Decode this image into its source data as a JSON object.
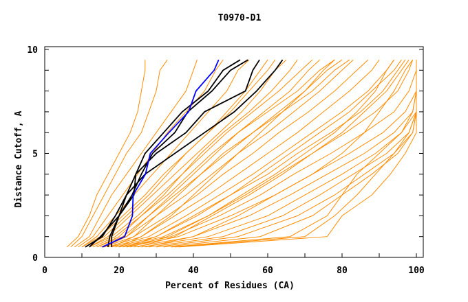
{
  "chart_data": {
    "type": "line",
    "title": "T0970-D1",
    "xlabel": "Percent of Residues (CA)",
    "ylabel": "Distance Cutoff, A",
    "xlim": [
      0,
      100
    ],
    "ylim": [
      0,
      10
    ],
    "xticks": [
      "0",
      "20",
      "40",
      "60",
      "80",
      "100"
    ],
    "yticks": [
      "0",
      "5",
      "10"
    ],
    "grid": false,
    "levels": [
      0.5,
      1,
      2,
      3,
      4,
      5,
      6,
      7,
      8,
      9,
      9.5
    ],
    "colors": {
      "others": "#ff8c00",
      "highlight": "#0000ff",
      "reference": "#000000"
    },
    "series_highlight": {
      "name": "blue",
      "x": [
        15.5,
        21.5,
        23.6,
        23.8,
        27.1,
        28.4,
        33.4,
        38.7,
        40.7,
        45.6,
        46.8
      ]
    },
    "series_reference": [
      {
        "x": [
          10.9,
          15.5,
          19,
          22,
          24.5,
          27,
          32,
          37,
          44,
          48,
          52.6
        ]
      },
      {
        "x": [
          17,
          17.5,
          20,
          23.5,
          26,
          29,
          35,
          38.5,
          45,
          50,
          54.7
        ]
      },
      {
        "x": [
          18,
          18,
          20,
          24,
          24.5,
          30,
          38,
          43,
          54,
          56,
          57.8
        ]
      },
      {
        "x": [
          12,
          15,
          20,
          22,
          27,
          35,
          43,
          51,
          57,
          62,
          64
        ]
      }
    ],
    "series_others": [
      {
        "x": [
          6,
          9,
          12,
          14,
          17,
          20,
          23,
          25,
          26,
          27,
          27
        ]
      },
      {
        "x": [
          7,
          10,
          13,
          16,
          19,
          22,
          26,
          28,
          30,
          31,
          33
        ]
      },
      {
        "x": [
          8,
          12,
          15,
          18,
          22,
          26,
          30,
          34,
          38,
          40,
          41
        ]
      },
      {
        "x": [
          9,
          13,
          17,
          21,
          25,
          29,
          33,
          38,
          43,
          46,
          48
        ]
      },
      {
        "x": [
          10,
          14,
          19,
          24,
          29,
          34,
          39,
          44,
          49,
          52,
          55
        ]
      },
      {
        "x": [
          11,
          16,
          22,
          28,
          33,
          38,
          44,
          50,
          55,
          60,
          62
        ]
      },
      {
        "x": [
          12,
          18,
          25,
          31,
          37,
          42,
          48,
          55,
          61,
          66,
          68
        ]
      },
      {
        "x": [
          13,
          19,
          26,
          33,
          39,
          45,
          52,
          59,
          66,
          71,
          74
        ]
      },
      {
        "x": [
          14,
          21,
          28,
          35,
          42,
          49,
          56,
          63,
          70,
          75,
          78
        ]
      },
      {
        "x": [
          15,
          22,
          30,
          38,
          45,
          52,
          60,
          67,
          74,
          80,
          83
        ]
      },
      {
        "x": [
          16,
          24,
          33,
          41,
          48,
          56,
          63,
          71,
          78,
          84,
          87
        ]
      },
      {
        "x": [
          17,
          26,
          35,
          44,
          52,
          60,
          68,
          75,
          82,
          88,
          90
        ]
      },
      {
        "x": [
          18,
          28,
          38,
          47,
          56,
          64,
          72,
          80,
          87,
          92,
          94
        ]
      },
      {
        "x": [
          19,
          30,
          41,
          50,
          60,
          68,
          77,
          85,
          91,
          95,
          97
        ]
      },
      {
        "x": [
          20,
          32,
          44,
          54,
          63,
          72,
          81,
          89,
          95,
          98,
          99
        ]
      },
      {
        "x": [
          21,
          34,
          47,
          58,
          67,
          77,
          86,
          94,
          98,
          100,
          100
        ]
      },
      {
        "x": [
          22,
          36,
          50,
          62,
          72,
          82,
          91,
          97,
          100,
          100,
          100
        ]
      },
      {
        "x": [
          24,
          40,
          55,
          66,
          76,
          86,
          94,
          99,
          100,
          100,
          100
        ]
      },
      {
        "x": [
          26,
          44,
          60,
          70,
          80,
          89,
          96,
          100,
          100,
          100,
          100
        ]
      },
      {
        "x": [
          28,
          48,
          64,
          74,
          83,
          92,
          98,
          100,
          100,
          100,
          100
        ]
      },
      {
        "x": [
          30,
          52,
          68,
          78,
          86,
          94,
          99,
          100,
          100,
          100,
          100
        ]
      },
      {
        "x": [
          32,
          58,
          72,
          80,
          88,
          95,
          99,
          100,
          100,
          100,
          100
        ]
      },
      {
        "x": [
          34,
          66,
          76,
          80,
          84,
          90,
          96,
          99,
          100,
          100,
          100
        ]
      },
      {
        "x": [
          35,
          70,
          78,
          84,
          89,
          94,
          98,
          100,
          100,
          100,
          100
        ]
      },
      {
        "x": [
          36,
          76,
          80,
          88,
          93,
          97,
          100,
          100,
          100,
          100,
          100
        ]
      },
      {
        "x": [
          20,
          26,
          34,
          40,
          46,
          52,
          58,
          64,
          70,
          76,
          80
        ]
      },
      {
        "x": [
          18,
          24,
          30,
          36,
          42,
          48,
          56,
          64,
          72,
          78,
          82
        ]
      },
      {
        "x": [
          16,
          22,
          28,
          34,
          40,
          46,
          52,
          60,
          68,
          74,
          78
        ]
      },
      {
        "x": [
          14,
          20,
          26,
          32,
          37,
          43,
          49,
          56,
          63,
          69,
          72
        ]
      },
      {
        "x": [
          25,
          35,
          45,
          55,
          64,
          72,
          80,
          86,
          92,
          96,
          98
        ]
      },
      {
        "x": [
          22,
          30,
          40,
          50,
          58,
          66,
          74,
          82,
          88,
          94,
          96
        ]
      },
      {
        "x": [
          12,
          17,
          23,
          29,
          35,
          41,
          47,
          53,
          58,
          62,
          65
        ]
      },
      {
        "x": [
          10,
          15,
          21,
          27,
          32,
          38,
          44,
          49,
          54,
          58,
          60
        ]
      },
      {
        "x": [
          27,
          40,
          52,
          62,
          72,
          80,
          86,
          90,
          94,
          97,
          99
        ]
      },
      {
        "x": [
          23,
          33,
          44,
          53,
          62,
          70,
          78,
          84,
          89,
          92,
          94
        ]
      }
    ]
  }
}
